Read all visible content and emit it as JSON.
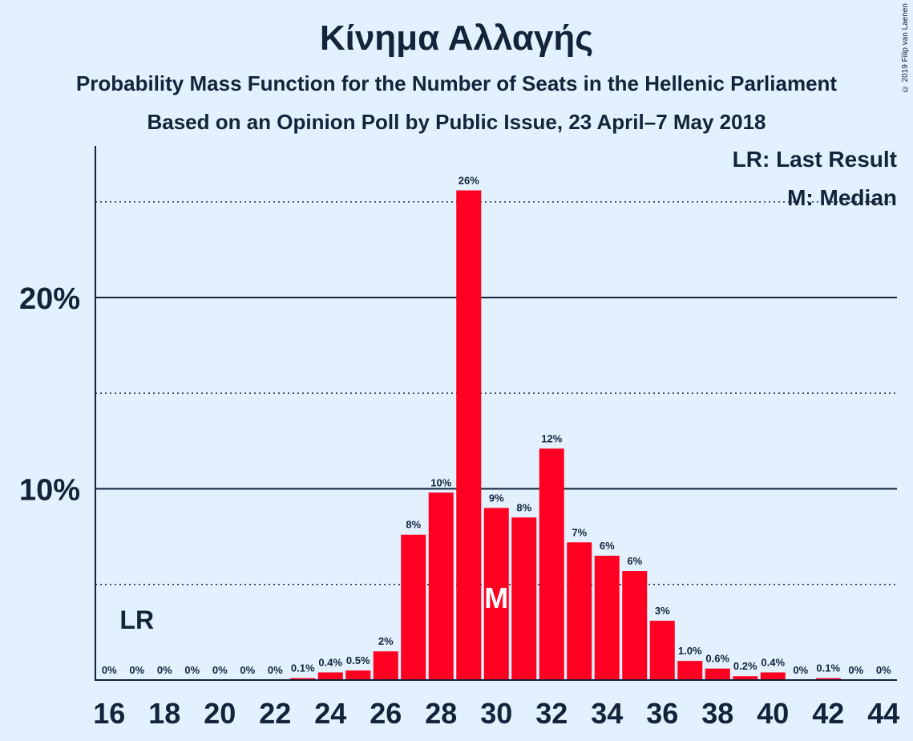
{
  "title": "Κίνημα Αλλαγής",
  "subtitle1": "Probability Mass Function for the Number of Seats in the Hellenic Parliament",
  "subtitle2": "Based on an Opinion Poll by Public Issue, 23 April–7 May 2018",
  "copyright": "© 2019 Filip van Laenen",
  "legend": {
    "last_result": "LR: Last Result",
    "median": "M: Median"
  },
  "colors": {
    "bar": "#ff0022",
    "background": "#e3f0fd",
    "text": "#12233a"
  },
  "chart_data": {
    "type": "bar",
    "x": [
      16,
      17,
      18,
      19,
      20,
      21,
      22,
      23,
      24,
      25,
      26,
      27,
      28,
      29,
      30,
      31,
      32,
      33,
      34,
      35,
      36,
      37,
      38,
      39,
      40,
      41,
      42,
      43,
      44
    ],
    "values": [
      0,
      0,
      0,
      0,
      0,
      0,
      0,
      0.1,
      0.4,
      0.5,
      1.5,
      7.6,
      9.8,
      25.6,
      9.0,
      8.5,
      12.1,
      7.2,
      6.5,
      5.7,
      3.1,
      1.0,
      0.6,
      0.2,
      0.4,
      0,
      0.1,
      0,
      0
    ],
    "data_labels": [
      "0%",
      "0%",
      "0%",
      "0%",
      "0%",
      "0%",
      "0%",
      "0.1%",
      "0.4%",
      "0.5%",
      "2%",
      "8%",
      "10%",
      "26%",
      "9%",
      "8%",
      "12%",
      "7%",
      "6%",
      "6%",
      "3%",
      "1.0%",
      "0.6%",
      "0.2%",
      "0.4%",
      "0%",
      "0.1%",
      "0%",
      "0%"
    ],
    "x_ticks": [
      "16",
      "18",
      "20",
      "22",
      "24",
      "26",
      "28",
      "30",
      "32",
      "34",
      "36",
      "38",
      "40",
      "42",
      "44"
    ],
    "y_ticks": [
      "10%",
      "20%"
    ],
    "y_tick_values": [
      10,
      20
    ],
    "dotted_gridlines": [
      5,
      15,
      25
    ],
    "ylim": [
      0,
      28
    ],
    "last_result": {
      "x": 17,
      "label": "LR"
    },
    "median": {
      "x": 30,
      "label": "M"
    }
  }
}
